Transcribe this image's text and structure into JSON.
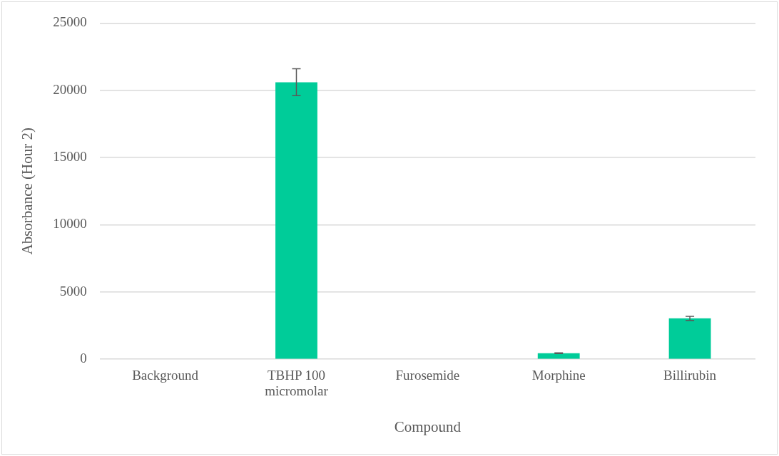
{
  "chart_data": {
    "type": "bar",
    "xlabel": "Compound",
    "ylabel": "Absorbance (Hour 2)",
    "categories": [
      "Background",
      "TBHP 100 micromolar",
      "Furosemide",
      "Morphine",
      "Billirubin"
    ],
    "values": [
      null,
      20600,
      null,
      450,
      3040
    ],
    "errors": [
      null,
      1000,
      null,
      30,
      150
    ],
    "color": "#00cc99",
    "ylim": [
      0,
      25000
    ],
    "yticks": [
      0,
      5000,
      10000,
      15000,
      20000,
      25000
    ],
    "grid": "y"
  }
}
